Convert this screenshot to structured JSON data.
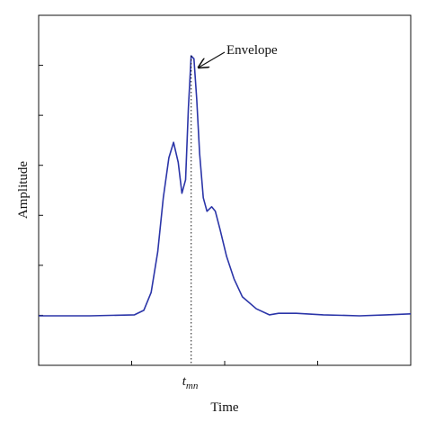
{
  "chart_data": {
    "type": "line",
    "xlabel": "Time",
    "ylabel": "Amplitude",
    "xlim": [
      0,
      4
    ],
    "xticks": [
      0,
      1,
      2,
      3,
      4
    ],
    "ylim": [
      0,
      7
    ],
    "yticks": [
      0,
      1,
      2,
      3,
      4,
      5,
      6,
      7
    ],
    "x": [
      0,
      0.55,
      1.03,
      1.13,
      1.21,
      1.28,
      1.34,
      1.4,
      1.45,
      1.5,
      1.54,
      1.58,
      1.61,
      1.64,
      1.67,
      1.7,
      1.73,
      1.77,
      1.81,
      1.86,
      1.9,
      1.95,
      2.02,
      2.1,
      2.19,
      2.34,
      2.48,
      2.58,
      2.77,
      3.06,
      3.45,
      3.74,
      4
    ],
    "series": [
      {
        "name": "Envelope",
        "color": "#2b35a8",
        "values": [
          0.99,
          0.99,
          1.01,
          1.1,
          1.46,
          2.27,
          3.35,
          4.15,
          4.46,
          4.06,
          3.44,
          3.71,
          5.14,
          6.19,
          6.13,
          5.32,
          4.24,
          3.35,
          3.08,
          3.17,
          3.08,
          2.72,
          2.18,
          1.73,
          1.37,
          1.13,
          1.01,
          1.04,
          1.04,
          1.01,
          0.99,
          1.01,
          1.03
        ]
      }
    ],
    "marker": {
      "x": 1.64,
      "label": "t",
      "subscript": "mn"
    }
  }
}
